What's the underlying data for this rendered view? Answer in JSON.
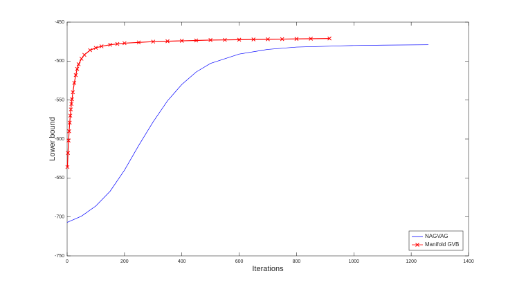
{
  "chart_data": {
    "type": "line",
    "x_label": "Iterations",
    "y_label": "Lower bound",
    "xlim": [
      0,
      1400
    ],
    "xticks": [
      0,
      200,
      400,
      600,
      800,
      1000,
      1200,
      1400
    ],
    "ylim": [
      -750,
      -450
    ],
    "yticks": [
      -750,
      -700,
      -650,
      -600,
      -550,
      -500,
      -450
    ],
    "legend": "southeast",
    "series": [
      {
        "name": "NAGVAG",
        "color": "#0000ff",
        "marker": "none",
        "x": [
          0,
          50,
          100,
          150,
          200,
          250,
          300,
          350,
          400,
          450,
          500,
          600,
          700,
          800,
          900,
          1000,
          1100,
          1260
        ],
        "values": [
          -707,
          -699,
          -686,
          -667,
          -640,
          -608,
          -578,
          -551,
          -530,
          -514,
          -503,
          -491,
          -485,
          -482,
          -481,
          -480,
          -479.5,
          -479
        ]
      },
      {
        "name": "Manifold GVB",
        "color": "#ff0000",
        "marker": "x",
        "x": [
          1,
          3,
          5,
          7,
          9,
          11,
          13,
          15,
          17,
          20,
          25,
          30,
          35,
          40,
          50,
          60,
          80,
          100,
          120,
          150,
          175,
          200,
          250,
          300,
          350,
          400,
          450,
          500,
          550,
          600,
          650,
          700,
          750,
          800,
          850,
          915
        ],
        "values": [
          -636,
          -618,
          -602,
          -590,
          -579,
          -570,
          -562,
          -555,
          -549,
          -540,
          -528,
          -518,
          -510,
          -504,
          -497,
          -492,
          -486,
          -483,
          -481,
          -479,
          -478,
          -477,
          -476,
          -475,
          -474.5,
          -474,
          -473.5,
          -473,
          -472.8,
          -472.5,
          -472.2,
          -472,
          -471.8,
          -471.5,
          -471.3,
          -471
        ]
      }
    ]
  }
}
